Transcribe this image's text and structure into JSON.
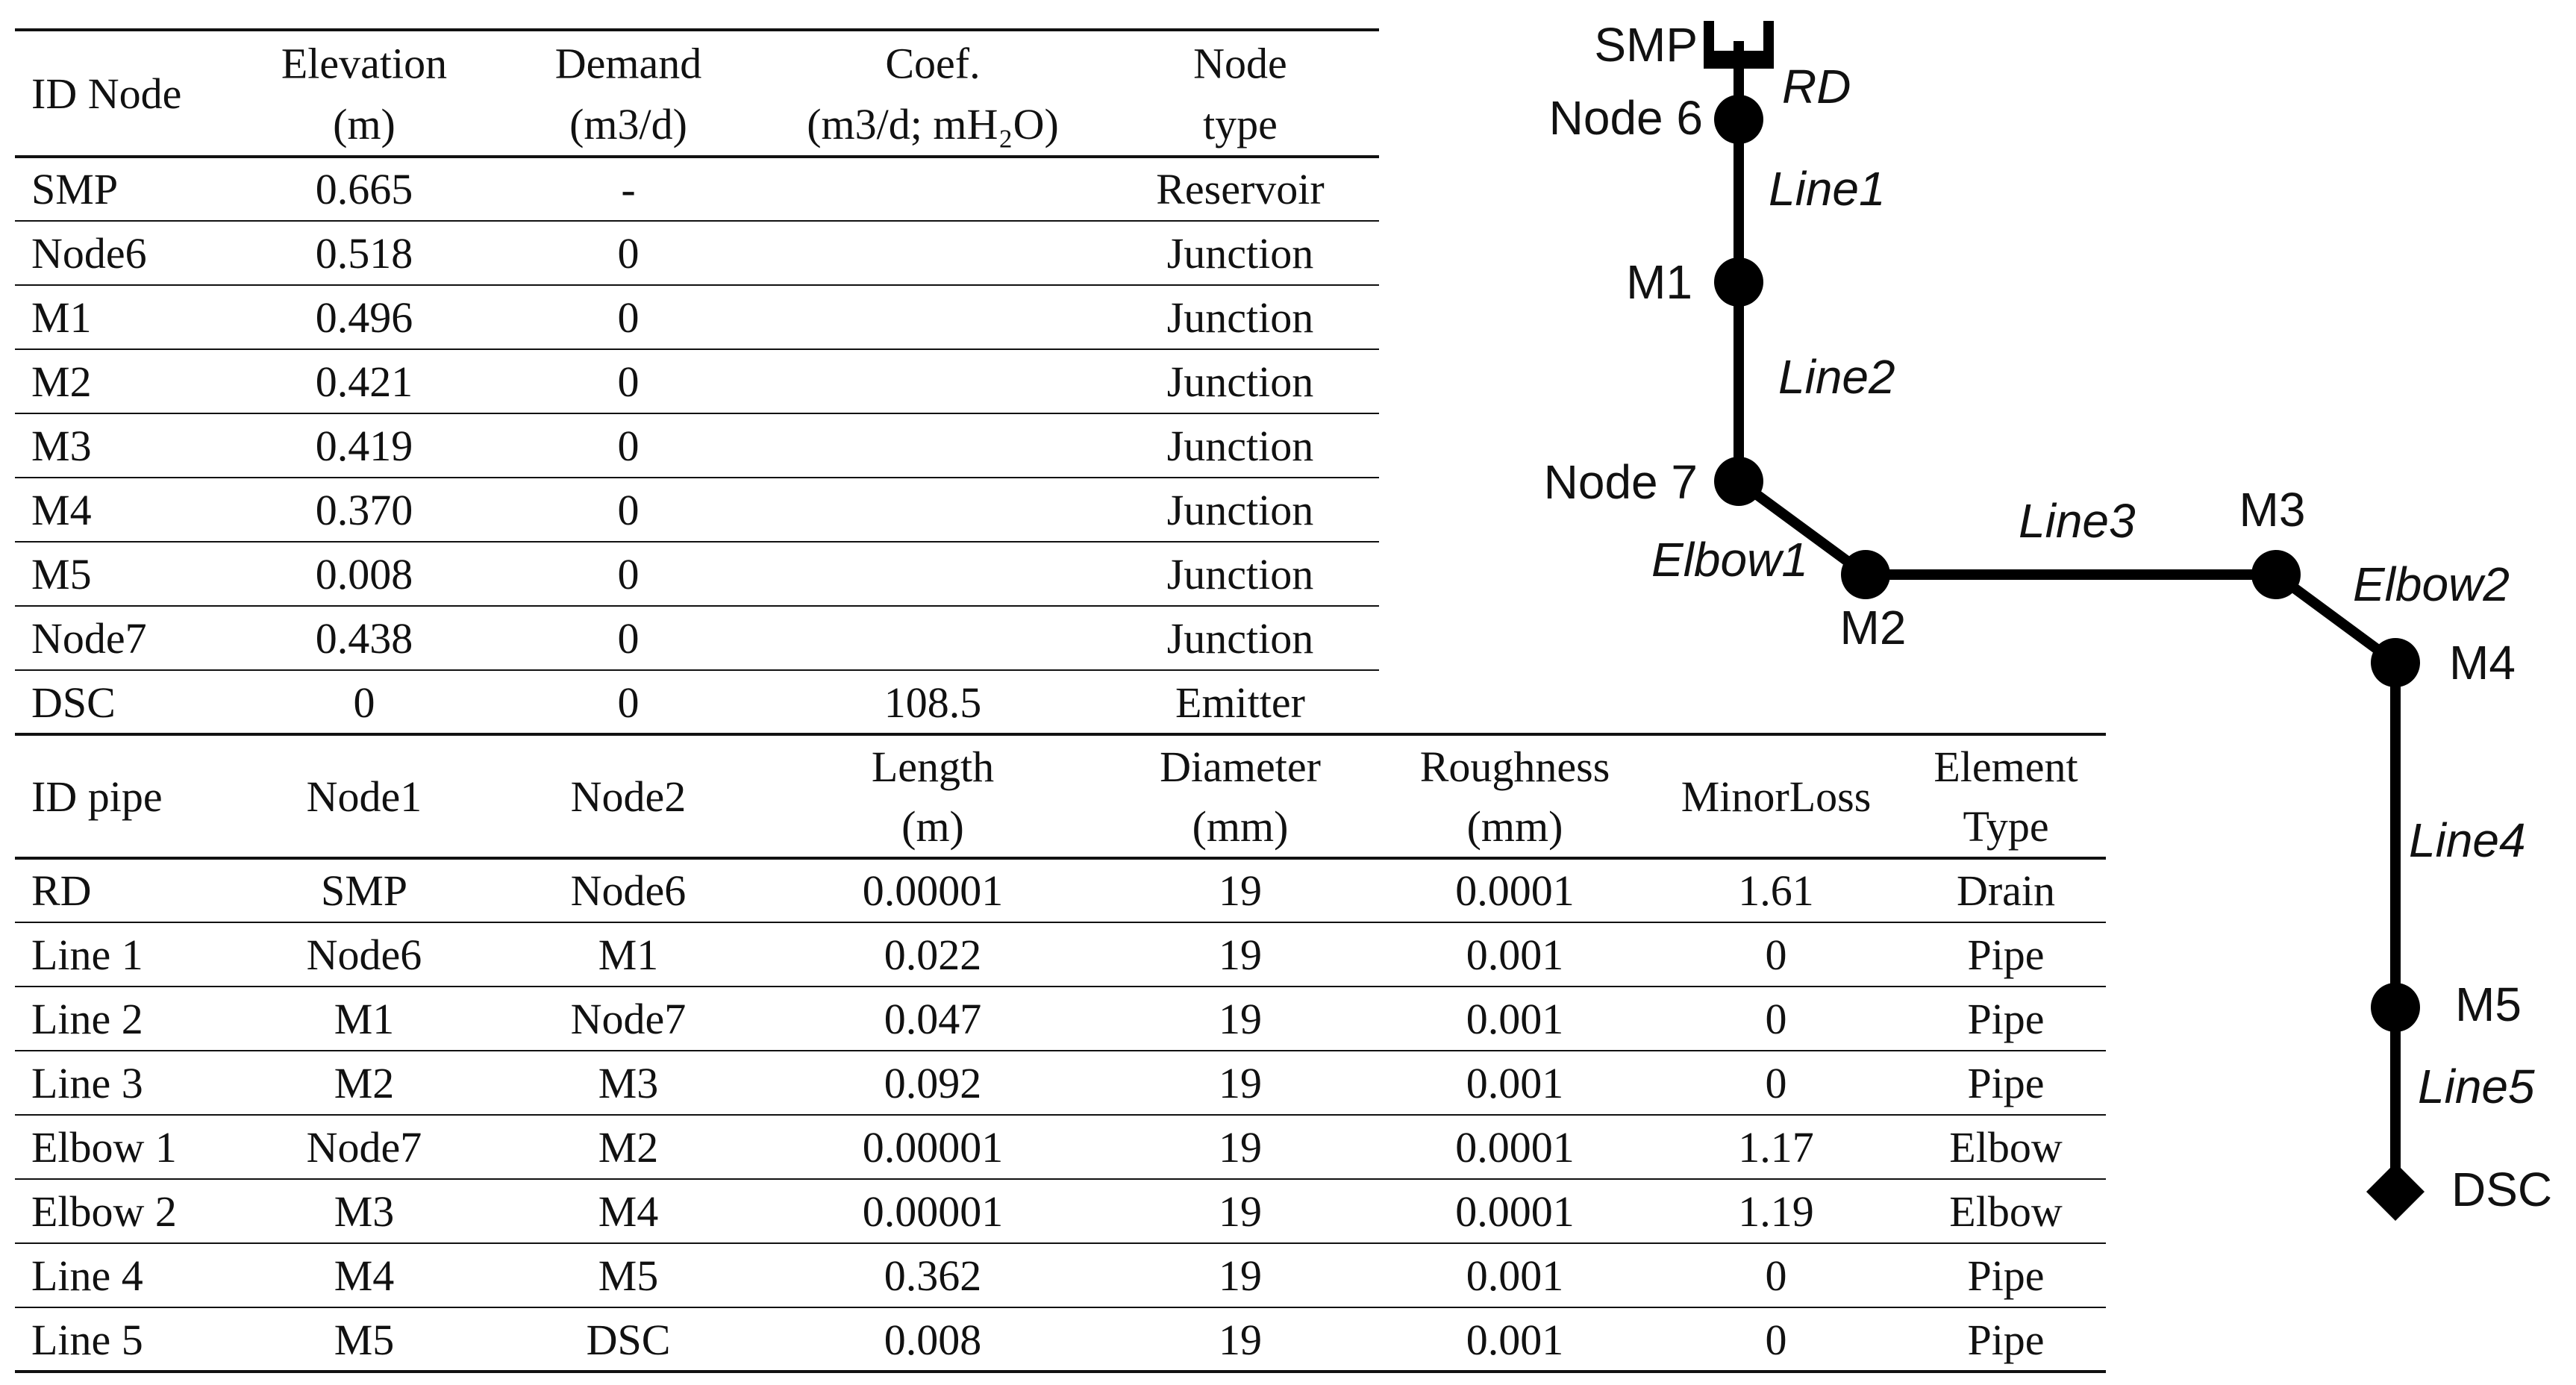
{
  "nodes_table": {
    "headers": [
      [
        "ID Node"
      ],
      [
        "Elevation",
        "(m)"
      ],
      [
        "Demand",
        "(m3/d)"
      ],
      [
        "Coef.",
        "(m3/d; mH₂O)"
      ],
      [
        "Node",
        "type"
      ]
    ],
    "rows": [
      [
        "SMP",
        "0.665",
        "-",
        "",
        "Reservoir"
      ],
      [
        "Node6",
        "0.518",
        "0",
        "",
        "Junction"
      ],
      [
        "M1",
        "0.496",
        "0",
        "",
        "Junction"
      ],
      [
        "M2",
        "0.421",
        "0",
        "",
        "Junction"
      ],
      [
        "M3",
        "0.419",
        "0",
        "",
        "Junction"
      ],
      [
        "M4",
        "0.370",
        "0",
        "",
        "Junction"
      ],
      [
        "M5",
        "0.008",
        "0",
        "",
        "Junction"
      ],
      [
        "Node7",
        "0.438",
        "0",
        "",
        "Junction"
      ],
      [
        "DSC",
        "0",
        "0",
        "108.5",
        "Emitter"
      ]
    ]
  },
  "pipes_table": {
    "headers": [
      [
        "ID pipe"
      ],
      [
        "Node1"
      ],
      [
        "Node2"
      ],
      [
        "Length",
        "(m)"
      ],
      [
        "Diameter",
        "(mm)"
      ],
      [
        "Roughness",
        "(mm)"
      ],
      [
        "MinorLoss"
      ],
      [
        "Element",
        "Type"
      ]
    ],
    "rows": [
      [
        "RD",
        "SMP",
        "Node6",
        "0.00001",
        "19",
        "0.0001",
        "1.61",
        "Drain"
      ],
      [
        "Line 1",
        "Node6",
        "M1",
        "0.022",
        "19",
        "0.001",
        "0",
        "Pipe"
      ],
      [
        "Line 2",
        "M1",
        "Node7",
        "0.047",
        "19",
        "0.001",
        "0",
        "Pipe"
      ],
      [
        "Line 3",
        "M2",
        "M3",
        "0.092",
        "19",
        "0.001",
        "0",
        "Pipe"
      ],
      [
        "Elbow 1",
        "Node7",
        "M2",
        "0.00001",
        "19",
        "0.0001",
        "1.17",
        "Elbow"
      ],
      [
        "Elbow 2",
        "M3",
        "M4",
        "0.00001",
        "19",
        "0.0001",
        "1.19",
        "Elbow"
      ],
      [
        "Line 4",
        "M4",
        "M5",
        "0.362",
        "19",
        "0.001",
        "0",
        "Pipe"
      ],
      [
        "Line 5",
        "M5",
        "DSC",
        "0.008",
        "19",
        "0.001",
        "0",
        "Pipe"
      ]
    ]
  },
  "network": {
    "node_labels": {
      "smp": "SMP",
      "node6": "Node 6",
      "m1": "M1",
      "node7": "Node 7",
      "m2": "M2",
      "m3": "M3",
      "m4": "M4",
      "m5": "M5",
      "dsc": "DSC"
    },
    "link_labels": {
      "rd": "RD",
      "line1": "Line1",
      "line2": "Line2",
      "elbow1": "Elbow1",
      "line3": "Line3",
      "elbow2": "Elbow2",
      "line4": "Line4",
      "line5": "Line5"
    }
  }
}
